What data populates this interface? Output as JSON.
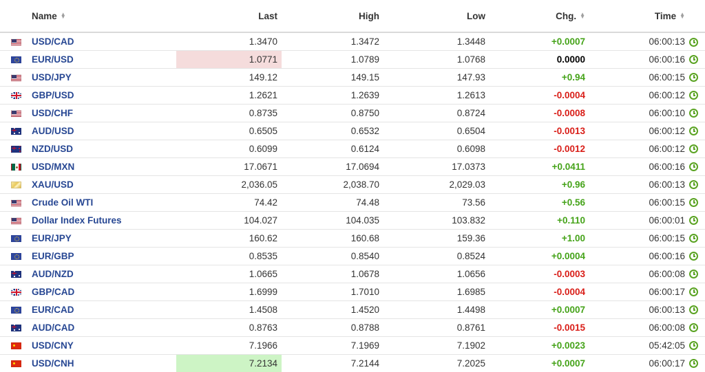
{
  "header": {
    "name": "Name",
    "last": "Last",
    "high": "High",
    "low": "Low",
    "chg": "Chg.",
    "time": "Time"
  },
  "sort_icon": "sort-arrows-icon",
  "status_icon": "clock-icon",
  "colors": {
    "positive": "#45a319",
    "negative": "#d91e18",
    "neutral": "#000000",
    "link": "#274793",
    "highlight_down": "#f5dcdc",
    "highlight_up": "#cdf4c5"
  },
  "rows": [
    {
      "flag": "us",
      "name": "USD/CAD",
      "last": "1.3470",
      "high": "1.3472",
      "low": "1.3448",
      "chg": "+0.0007",
      "dir": "pos",
      "time": "06:00:13",
      "hl": ""
    },
    {
      "flag": "eu",
      "name": "EUR/USD",
      "last": "1.0771",
      "high": "1.0789",
      "low": "1.0768",
      "chg": "0.0000",
      "dir": "zero",
      "time": "06:00:16",
      "hl": "red"
    },
    {
      "flag": "us",
      "name": "USD/JPY",
      "last": "149.12",
      "high": "149.15",
      "low": "147.93",
      "chg": "+0.94",
      "dir": "pos",
      "time": "06:00:15",
      "hl": ""
    },
    {
      "flag": "gb",
      "name": "GBP/USD",
      "last": "1.2621",
      "high": "1.2639",
      "low": "1.2613",
      "chg": "-0.0004",
      "dir": "neg",
      "time": "06:00:12",
      "hl": ""
    },
    {
      "flag": "us",
      "name": "USD/CHF",
      "last": "0.8735",
      "high": "0.8750",
      "low": "0.8724",
      "chg": "-0.0008",
      "dir": "neg",
      "time": "06:00:10",
      "hl": ""
    },
    {
      "flag": "au",
      "name": "AUD/USD",
      "last": "0.6505",
      "high": "0.6532",
      "low": "0.6504",
      "chg": "-0.0013",
      "dir": "neg",
      "time": "06:00:12",
      "hl": ""
    },
    {
      "flag": "nz",
      "name": "NZD/USD",
      "last": "0.6099",
      "high": "0.6124",
      "low": "0.6098",
      "chg": "-0.0012",
      "dir": "neg",
      "time": "06:00:12",
      "hl": ""
    },
    {
      "flag": "mx",
      "name": "USD/MXN",
      "last": "17.0671",
      "high": "17.0694",
      "low": "17.0373",
      "chg": "+0.0411",
      "dir": "pos",
      "time": "06:00:16",
      "hl": ""
    },
    {
      "flag": "xau",
      "name": "XAU/USD",
      "last": "2,036.05",
      "high": "2,038.70",
      "low": "2,029.03",
      "chg": "+0.96",
      "dir": "pos",
      "time": "06:00:13",
      "hl": ""
    },
    {
      "flag": "us",
      "name": "Crude Oil WTI",
      "last": "74.42",
      "high": "74.48",
      "low": "73.56",
      "chg": "+0.56",
      "dir": "pos",
      "time": "06:00:15",
      "hl": ""
    },
    {
      "flag": "us",
      "name": "Dollar Index Futures",
      "last": "104.027",
      "high": "104.035",
      "low": "103.832",
      "chg": "+0.110",
      "dir": "pos",
      "time": "06:00:01",
      "hl": ""
    },
    {
      "flag": "eu",
      "name": "EUR/JPY",
      "last": "160.62",
      "high": "160.68",
      "low": "159.36",
      "chg": "+1.00",
      "dir": "pos",
      "time": "06:00:15",
      "hl": ""
    },
    {
      "flag": "eu",
      "name": "EUR/GBP",
      "last": "0.8535",
      "high": "0.8540",
      "low": "0.8524",
      "chg": "+0.0004",
      "dir": "pos",
      "time": "06:00:16",
      "hl": ""
    },
    {
      "flag": "au",
      "name": "AUD/NZD",
      "last": "1.0665",
      "high": "1.0678",
      "low": "1.0656",
      "chg": "-0.0003",
      "dir": "neg",
      "time": "06:00:08",
      "hl": ""
    },
    {
      "flag": "gb",
      "name": "GBP/CAD",
      "last": "1.6999",
      "high": "1.7010",
      "low": "1.6985",
      "chg": "-0.0004",
      "dir": "neg",
      "time": "06:00:17",
      "hl": ""
    },
    {
      "flag": "eu",
      "name": "EUR/CAD",
      "last": "1.4508",
      "high": "1.4520",
      "low": "1.4498",
      "chg": "+0.0007",
      "dir": "pos",
      "time": "06:00:13",
      "hl": ""
    },
    {
      "flag": "au",
      "name": "AUD/CAD",
      "last": "0.8763",
      "high": "0.8788",
      "low": "0.8761",
      "chg": "-0.0015",
      "dir": "neg",
      "time": "06:00:08",
      "hl": ""
    },
    {
      "flag": "cn",
      "name": "USD/CNY",
      "last": "7.1966",
      "high": "7.1969",
      "low": "7.1902",
      "chg": "+0.0023",
      "dir": "pos",
      "time": "05:42:05",
      "hl": ""
    },
    {
      "flag": "cn",
      "name": "USD/CNH",
      "last": "7.2134",
      "high": "7.2144",
      "low": "7.2025",
      "chg": "+0.0007",
      "dir": "pos",
      "time": "06:00:17",
      "hl": "green"
    }
  ]
}
